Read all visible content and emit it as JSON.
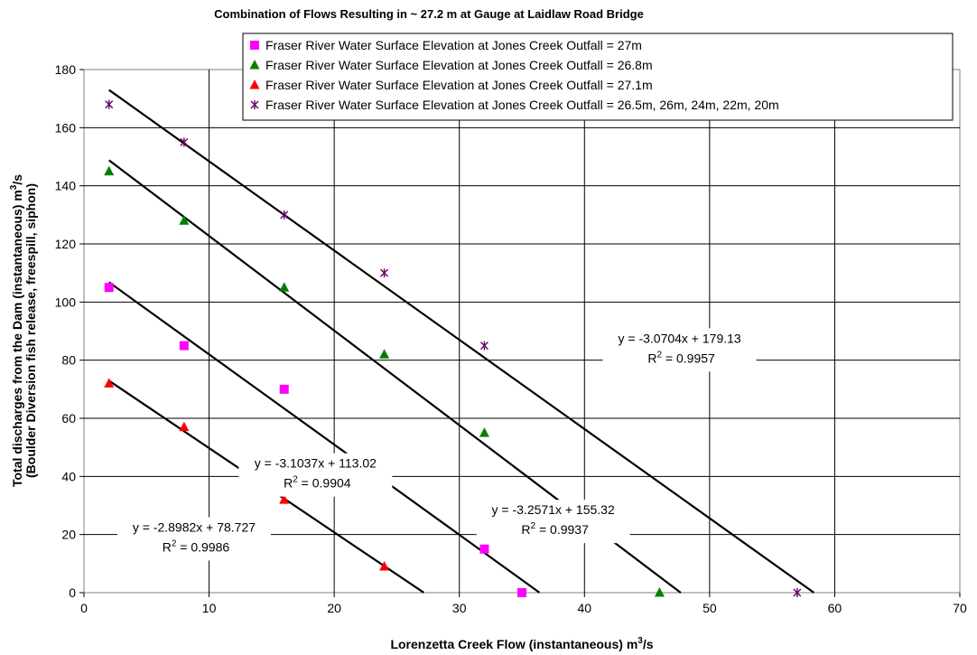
{
  "chart_data": {
    "type": "scatter",
    "title": "Combination of Flows Resulting in ~ 27.2 m at Gauge at Laidlaw Road Bridge",
    "xlabel_main": "Lorenzetta Creek Flow (instantaneous) m",
    "xlabel_sup": "3",
    "xlabel_tail": "/s",
    "ylabel_line1_main": "Total discharges from the Dam (instantaneous) m",
    "ylabel_line1_sup": "3",
    "ylabel_line1_tail": "/s",
    "ylabel_line2": "(Boulder Diversion fish release, freespill, siphon)",
    "xlim": [
      0,
      70
    ],
    "ylim": [
      0,
      180
    ],
    "x_ticks": [
      0,
      10,
      20,
      30,
      40,
      50,
      60,
      70
    ],
    "y_ticks": [
      0,
      20,
      40,
      60,
      80,
      100,
      120,
      140,
      160,
      180
    ],
    "grid": true,
    "legend_position": "top-right",
    "series": [
      {
        "name": "Fraser River Water Surface Elevation at Jones Creek Outfall = 27m",
        "marker": "square",
        "color": "#ff00ff",
        "points": [
          [
            2,
            105
          ],
          [
            8,
            85
          ],
          [
            16,
            70
          ],
          [
            32,
            15
          ],
          [
            35,
            0
          ]
        ],
        "trendline": {
          "slope": -3.1037,
          "intercept": 113.02,
          "x_start": 2,
          "x_end": 36.4
        },
        "equation": "y = -3.1037x + 113.02",
        "r2": "= 0.9904"
      },
      {
        "name": "Fraser River Water Surface Elevation at Jones Creek Outfall = 26.8m",
        "marker": "triangle",
        "color": "#008000",
        "points": [
          [
            2,
            145
          ],
          [
            8,
            128
          ],
          [
            16,
            105
          ],
          [
            24,
            82
          ],
          [
            32,
            55
          ],
          [
            46,
            0
          ]
        ],
        "trendline": {
          "slope": -3.2571,
          "intercept": 155.32,
          "x_start": 2,
          "x_end": 47.7
        },
        "equation": "y = -3.2571x + 155.32",
        "r2": "= 0.9937"
      },
      {
        "name": "Fraser River Water Surface Elevation at Jones Creek Outfall = 27.1m",
        "marker": "triangle",
        "color": "#ff0000",
        "points": [
          [
            2,
            72
          ],
          [
            8,
            57
          ],
          [
            16,
            32
          ],
          [
            24,
            9
          ]
        ],
        "trendline": {
          "slope": -2.8982,
          "intercept": 78.727,
          "x_start": 2,
          "x_end": 27.16
        },
        "equation": "y = -2.8982x + 78.727",
        "r2": "= 0.9986"
      },
      {
        "name": "Fraser River Water Surface Elevation at Jones Creek Outfall = 26.5m, 26m, 24m, 22m, 20m",
        "marker": "star",
        "color": "#660066",
        "points": [
          [
            2,
            168
          ],
          [
            8,
            155
          ],
          [
            16,
            130
          ],
          [
            24,
            110
          ],
          [
            32,
            85
          ],
          [
            57,
            0
          ]
        ],
        "trendline": {
          "slope": -3.0704,
          "intercept": 179.13,
          "x_start": 2,
          "x_end": 58.34
        },
        "equation": "y = -3.0704x + 179.13",
        "r2": "= 0.9957"
      }
    ],
    "r2_prefix": "R",
    "r2_sup": "2"
  }
}
